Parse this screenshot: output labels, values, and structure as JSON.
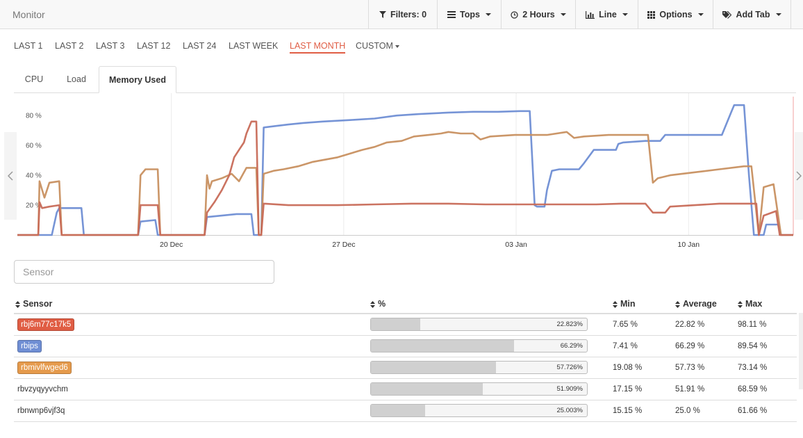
{
  "topbar": {
    "title": "Monitor",
    "filters": "Filters: 0",
    "tops": "Tops",
    "period": "2 Hours",
    "chart_type": "Line",
    "options": "Options",
    "add_tab": "Add Tab"
  },
  "ranges": [
    {
      "label": "LAST 1"
    },
    {
      "label": "LAST 2"
    },
    {
      "label": "LAST 3"
    },
    {
      "label": "LAST 12"
    },
    {
      "label": "LAST 24"
    },
    {
      "label": "LAST WEEK"
    },
    {
      "label": "LAST MONTH",
      "active": true
    },
    {
      "label": "CUSTOM"
    }
  ],
  "tabs": [
    {
      "label": "CPU"
    },
    {
      "label": "Load"
    },
    {
      "label": "Memory Used",
      "active": true
    }
  ],
  "search": {
    "placeholder": "Sensor"
  },
  "table": {
    "headers": {
      "sensor": "Sensor",
      "pct": "%",
      "min": "Min",
      "avg": "Average",
      "max": "Max"
    },
    "rows": [
      {
        "name": "rbj6m77c17k5",
        "color": "#e05d44",
        "pct": "22.823%",
        "pct_value": 22.823,
        "min": "7.65 %",
        "avg": "22.82 %",
        "max": "98.11 %"
      },
      {
        "name": "rbips",
        "color": "#6f8ed4",
        "pct": "66.29%",
        "pct_value": 66.29,
        "min": "7.41 %",
        "avg": "66.29 %",
        "max": "89.54 %"
      },
      {
        "name": "rbmivlfwged6",
        "color": "#e59a4c",
        "pct": "57.726%",
        "pct_value": 57.726,
        "min": "19.08 %",
        "avg": "57.73 %",
        "max": "73.14 %"
      },
      {
        "name": "rbvzyqyyvchm",
        "color": null,
        "pct": "51.909%",
        "pct_value": 51.909,
        "min": "17.15 %",
        "avg": "51.91 %",
        "max": "68.59 %"
      },
      {
        "name": "rbnwnp6vjf3q",
        "color": null,
        "pct": "25.003%",
        "pct_value": 25.003,
        "min": "15.15 %",
        "avg": "25.0 %",
        "max": "61.66 %"
      }
    ]
  },
  "chart_data": {
    "type": "line",
    "y_ticks": [
      "20 %",
      "40 %",
      "60 %",
      "80 %"
    ],
    "y_tick_values": [
      20,
      40,
      60,
      80
    ],
    "ylim": [
      0,
      95
    ],
    "x_ticks": [
      "20 Dec",
      "27 Dec",
      "03 Jan",
      "10 Jan"
    ],
    "x_tick_values": [
      6.25,
      13.25,
      20.25,
      27.25
    ],
    "xlim": [
      0,
      31.5
    ],
    "x_unit": "days",
    "grid": "vertical",
    "series": [
      {
        "color": "#6f8ed4",
        "points": [
          [
            0,
            0
          ],
          [
            1.4,
            0
          ],
          [
            1.6,
            15
          ],
          [
            1.7,
            18
          ],
          [
            2.6,
            18
          ],
          [
            2.7,
            0
          ],
          [
            4.9,
            0
          ],
          [
            5.0,
            9
          ],
          [
            5.6,
            10
          ],
          [
            5.7,
            0
          ],
          [
            7.6,
            0
          ],
          [
            7.7,
            12
          ],
          [
            8.3,
            13
          ],
          [
            8.9,
            14
          ],
          [
            9.5,
            14
          ],
          [
            9.6,
            0
          ],
          [
            9.9,
            0
          ],
          [
            10.0,
            72
          ],
          [
            10.5,
            73
          ],
          [
            11.0,
            74
          ],
          [
            11.6,
            75
          ],
          [
            12.4,
            76
          ],
          [
            13.5,
            77
          ],
          [
            14.5,
            78
          ],
          [
            15.4,
            80
          ],
          [
            16.3,
            81
          ],
          [
            17.5,
            82
          ],
          [
            18.5,
            82.5
          ],
          [
            19.5,
            82.5
          ],
          [
            20.4,
            83
          ],
          [
            20.8,
            83
          ],
          [
            21.0,
            20
          ],
          [
            21.1,
            19
          ],
          [
            21.4,
            19
          ],
          [
            21.5,
            30
          ],
          [
            21.7,
            43
          ],
          [
            22.0,
            44
          ],
          [
            22.8,
            44
          ],
          [
            23.0,
            48
          ],
          [
            23.4,
            57
          ],
          [
            24.0,
            57
          ],
          [
            24.3,
            57
          ],
          [
            24.4,
            61
          ],
          [
            24.6,
            62
          ],
          [
            25.5,
            63
          ],
          [
            26.1,
            63
          ],
          [
            26.3,
            67
          ],
          [
            27.0,
            67
          ],
          [
            28.0,
            67
          ],
          [
            28.6,
            67
          ],
          [
            29.0,
            83
          ],
          [
            29.1,
            87
          ],
          [
            29.5,
            87
          ],
          [
            29.7,
            40
          ],
          [
            29.9,
            0
          ],
          [
            30.3,
            0
          ],
          [
            30.4,
            7
          ],
          [
            30.9,
            7
          ],
          [
            31.0,
            0
          ],
          [
            31.5,
            0
          ]
        ]
      },
      {
        "color": "#c89060",
        "points": [
          [
            0,
            0
          ],
          [
            0.85,
            0
          ],
          [
            0.9,
            36
          ],
          [
            1.1,
            25
          ],
          [
            1.3,
            35
          ],
          [
            1.7,
            36
          ],
          [
            1.8,
            0
          ],
          [
            4.9,
            0
          ],
          [
            5.0,
            40
          ],
          [
            5.2,
            44
          ],
          [
            5.7,
            44
          ],
          [
            5.8,
            0
          ],
          [
            7.6,
            0
          ],
          [
            7.7,
            40
          ],
          [
            7.8,
            31
          ],
          [
            7.9,
            36
          ],
          [
            8.3,
            38
          ],
          [
            8.7,
            41
          ],
          [
            9.0,
            36
          ],
          [
            9.3,
            45
          ],
          [
            9.7,
            45
          ],
          [
            9.8,
            0
          ],
          [
            9.9,
            0
          ],
          [
            10.0,
            41
          ],
          [
            10.4,
            43
          ],
          [
            10.8,
            44
          ],
          [
            11.4,
            46
          ],
          [
            12.0,
            49
          ],
          [
            13.0,
            52
          ],
          [
            14.0,
            57
          ],
          [
            14.5,
            59
          ],
          [
            15.0,
            62
          ],
          [
            15.6,
            63
          ],
          [
            16.1,
            66
          ],
          [
            16.7,
            67
          ],
          [
            17.2,
            68
          ],
          [
            17.5,
            69
          ],
          [
            18.0,
            68
          ],
          [
            18.5,
            68
          ],
          [
            18.8,
            64
          ],
          [
            19.2,
            66
          ],
          [
            20.2,
            67
          ],
          [
            21.5,
            67
          ],
          [
            22.3,
            69
          ],
          [
            22.6,
            65
          ],
          [
            23.0,
            66
          ],
          [
            24.0,
            67
          ],
          [
            25.0,
            67
          ],
          [
            25.6,
            67
          ],
          [
            25.8,
            35
          ],
          [
            26.0,
            38
          ],
          [
            26.5,
            40
          ],
          [
            27.5,
            42
          ],
          [
            28.5,
            44
          ],
          [
            29.5,
            46
          ],
          [
            29.8,
            46
          ],
          [
            30.1,
            0
          ],
          [
            30.3,
            32
          ],
          [
            30.7,
            34
          ],
          [
            31.0,
            0
          ],
          [
            31.5,
            0
          ]
        ]
      },
      {
        "color": "#c86c58",
        "points": [
          [
            0,
            0
          ],
          [
            0.85,
            0
          ],
          [
            0.9,
            22
          ],
          [
            1.0,
            18
          ],
          [
            1.3,
            19
          ],
          [
            1.7,
            20
          ],
          [
            1.8,
            0
          ],
          [
            4.9,
            0
          ],
          [
            5.0,
            20
          ],
          [
            5.7,
            20
          ],
          [
            5.8,
            0
          ],
          [
            7.6,
            0
          ],
          [
            7.7,
            15
          ],
          [
            8.0,
            22
          ],
          [
            8.3,
            30
          ],
          [
            8.6,
            40
          ],
          [
            8.8,
            52
          ],
          [
            9.0,
            57
          ],
          [
            9.2,
            62
          ],
          [
            9.3,
            68
          ],
          [
            9.5,
            76
          ],
          [
            9.7,
            76
          ],
          [
            9.8,
            0
          ],
          [
            9.9,
            0
          ],
          [
            10.0,
            21
          ],
          [
            11.0,
            20
          ],
          [
            13.0,
            20
          ],
          [
            14.5,
            20.5
          ],
          [
            16.0,
            21
          ],
          [
            17.5,
            21
          ],
          [
            19.0,
            20.5
          ],
          [
            21.0,
            20.5
          ],
          [
            22.6,
            20.5
          ],
          [
            23.5,
            20.5
          ],
          [
            24.5,
            21
          ],
          [
            25.5,
            21
          ],
          [
            25.8,
            15
          ],
          [
            26.3,
            15
          ],
          [
            26.5,
            19
          ],
          [
            27.5,
            20
          ],
          [
            28.5,
            21
          ],
          [
            29.5,
            21
          ],
          [
            30.0,
            21
          ],
          [
            30.1,
            0
          ],
          [
            30.3,
            13
          ],
          [
            30.8,
            16
          ],
          [
            30.95,
            0
          ],
          [
            31.5,
            0
          ]
        ]
      }
    ]
  }
}
